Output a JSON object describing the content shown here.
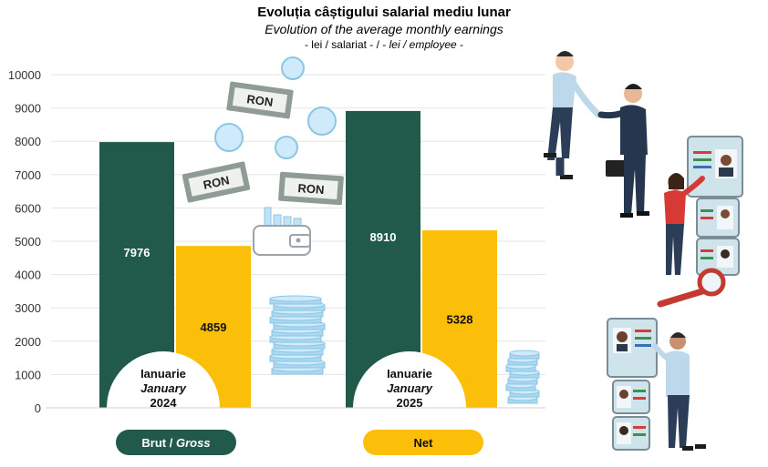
{
  "header": {
    "title_ro": "Evoluția câștigului salarial mediu lunar",
    "title_en": "Evolution of the average monthly earnings",
    "unit_a": "- lei / salariat - / - ",
    "unit_b": "lei / employee",
    "unit_c": " -"
  },
  "colors": {
    "brut": "#215a4a",
    "net": "#fbbf0a",
    "grid": "#e4e4e4",
    "coin": "#a9d8f0",
    "coin_stroke": "#8cc6e4",
    "banknote": "#8e9c93"
  },
  "icons": [
    "banknote-icon",
    "coin-icon",
    "wallet-icon",
    "coin-stack-icon",
    "business-people-illustration"
  ],
  "banknote_text": "RON",
  "chart_data": {
    "type": "bar",
    "title": "Evoluția câștigului salarial mediu lunar",
    "subtitle": "Evolution of the average monthly earnings",
    "ylabel": "",
    "ylim": [
      0,
      10000
    ],
    "yticks": [
      0,
      1000,
      2000,
      3000,
      4000,
      5000,
      6000,
      7000,
      8000,
      9000,
      10000
    ],
    "ytick_labels": [
      "0",
      "1000",
      "2000",
      "3000",
      "4000",
      "5000",
      "6000",
      "7000",
      "8000",
      "9000",
      "10000"
    ],
    "grid": true,
    "legend_placement": "bottom",
    "categories": [
      {
        "line1": "Ianuarie",
        "line2": "January",
        "line3": "2024"
      },
      {
        "line1": "Ianuarie",
        "line2": "January",
        "line3": "2025"
      }
    ],
    "series": [
      {
        "name": "Brut / Gross",
        "name_ro": "Brut",
        "name_en": "Gross",
        "values": [
          7976,
          8910
        ]
      },
      {
        "name": "Net",
        "values": [
          4859,
          5328
        ]
      }
    ],
    "value_labels": [
      [
        "7976",
        "8910"
      ],
      [
        "4859",
        "5328"
      ]
    ]
  }
}
